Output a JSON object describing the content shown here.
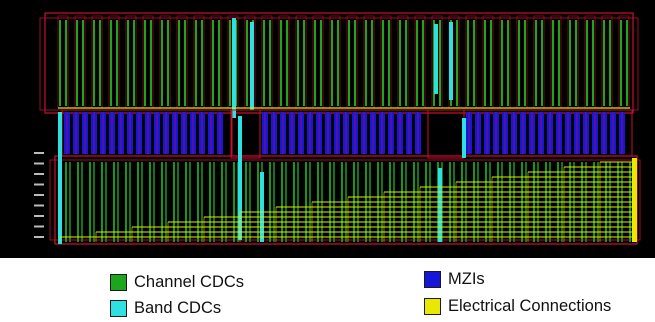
{
  "colors": {
    "background": "#000000",
    "channel_cdc": "#1ea51e",
    "band_cdc": "#2fe0e0",
    "mzi": "#1616d8",
    "electrical": "#e8e800",
    "boundary": "#c8102e",
    "io_pins": "#bbbbbb"
  },
  "legend": {
    "channel_cdcs": {
      "label": "Channel CDCs",
      "color": "#1ea51e"
    },
    "band_cdcs": {
      "label": "Band CDCs",
      "color": "#2fe0e0"
    },
    "mzis": {
      "label": "MZIs",
      "color": "#1616d8"
    },
    "electrical_connections": {
      "label": "Electrical Connections",
      "color": "#e8e800"
    }
  }
}
